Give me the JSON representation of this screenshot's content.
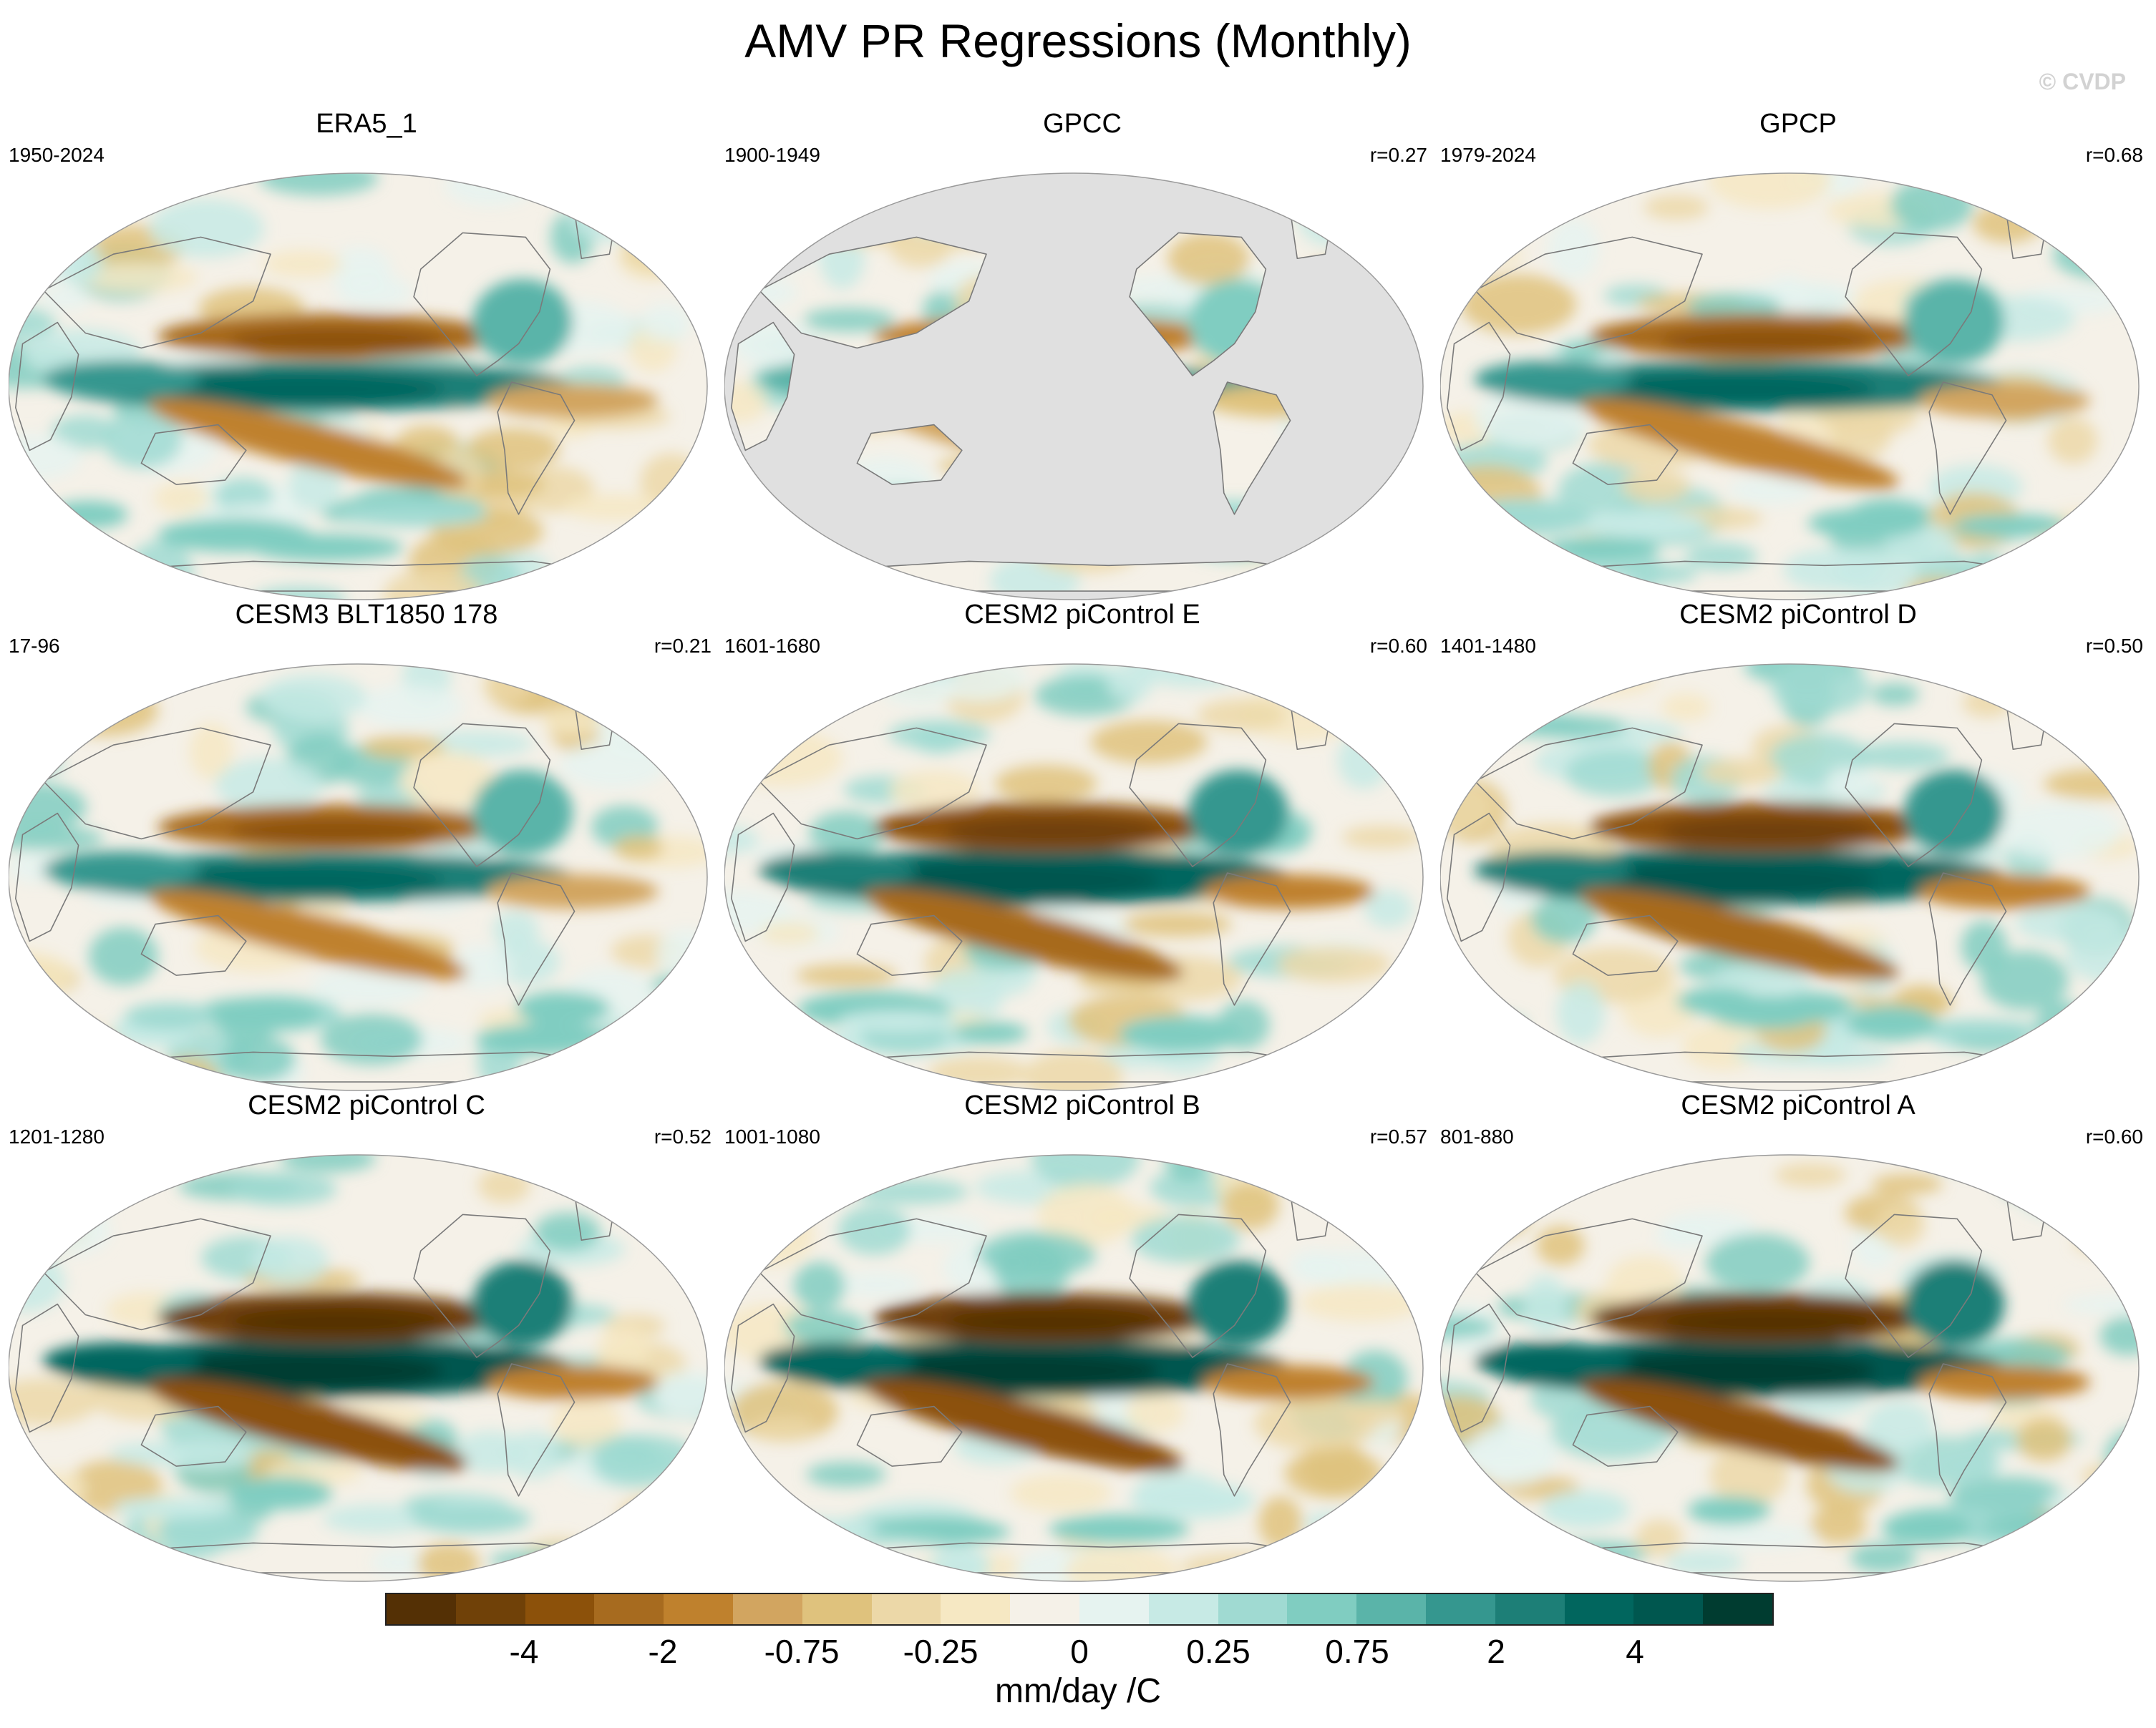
{
  "figure": {
    "title": "AMV PR Regressions (Monthly)",
    "watermark": "© CVDP"
  },
  "panels": [
    {
      "title": "ERA5_1",
      "period": "1950-2024",
      "corr": "",
      "gray_ocean": false,
      "strength": 0.55,
      "seed": 3
    },
    {
      "title": "GPCC",
      "period": "1900-1949",
      "corr": "r=0.27",
      "gray_ocean": true,
      "strength": 0.35,
      "seed": 7
    },
    {
      "title": "GPCP",
      "period": "1979-2024",
      "corr": "r=0.68",
      "gray_ocean": false,
      "strength": 0.6,
      "seed": 11
    },
    {
      "title": "CESM3 BLT1850 178",
      "period": "17-96",
      "corr": "r=0.21",
      "gray_ocean": false,
      "strength": 0.55,
      "seed": 13
    },
    {
      "title": "CESM2 piControl E",
      "period": "1601-1680",
      "corr": "r=0.60",
      "gray_ocean": false,
      "strength": 0.85,
      "seed": 17
    },
    {
      "title": "CESM2 piControl D",
      "period": "1401-1480",
      "corr": "r=0.50",
      "gray_ocean": false,
      "strength": 0.85,
      "seed": 19
    },
    {
      "title": "CESM2 piControl C",
      "period": "1201-1280",
      "corr": "r=0.52",
      "gray_ocean": false,
      "strength": 0.95,
      "seed": 23
    },
    {
      "title": "CESM2 piControl B",
      "period": "1001-1080",
      "corr": "r=0.57",
      "gray_ocean": false,
      "strength": 0.9,
      "seed": 29
    },
    {
      "title": "CESM2 piControl A",
      "period": "801-880",
      "corr": "r=0.60",
      "gray_ocean": false,
      "strength": 0.9,
      "seed": 31
    }
  ],
  "colorbar": {
    "label": "mm/day /C",
    "colors": [
      "#543005",
      "#704108",
      "#8c510a",
      "#a76b1f",
      "#bf812d",
      "#d2a560",
      "#dfc27d",
      "#ecd8a8",
      "#f6e8c3",
      "#f5f1e8",
      "#e6f3f0",
      "#c7eae5",
      "#a0dad2",
      "#80cdc1",
      "#5ab4a9",
      "#35978f",
      "#1d7f77",
      "#01665e",
      "#00574f",
      "#003c30"
    ],
    "ticks": [
      {
        "label": "-4",
        "boundary": 2
      },
      {
        "label": "-2",
        "boundary": 4
      },
      {
        "label": "-0.75",
        "boundary": 6
      },
      {
        "label": "-0.25",
        "boundary": 8
      },
      {
        "label": "0",
        "boundary": 10
      },
      {
        "label": "0.25",
        "boundary": 12
      },
      {
        "label": "0.75",
        "boundary": 14
      },
      {
        "label": "2",
        "boundary": 16
      },
      {
        "label": "4",
        "boundary": 18
      }
    ]
  }
}
